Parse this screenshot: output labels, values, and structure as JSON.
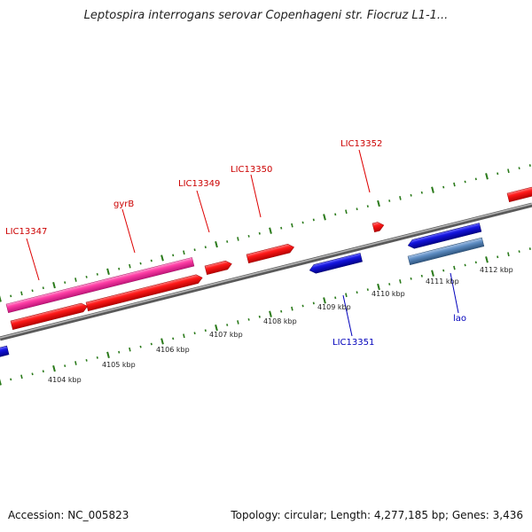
{
  "title": "Leptospira interrogans serovar Copenhageni str. Fiocruz L1-1...",
  "footer": {
    "accession": "Accession: NC_005823",
    "summary": "Topology: circular; Length: 4,277,185 bp; Genes: 3,436"
  },
  "colors": {
    "forward_gene": "#e60000",
    "reverse_gene": "#1010d0",
    "highlight_gene": "#ff3fa6",
    "steel_gene": "#4f7fb5",
    "axis": "#888888",
    "ticks": "#2a7a1a",
    "label_forward": "#cc0000",
    "label_reverse": "#0000bb"
  },
  "scale": {
    "unit": "kbp",
    "ticks_kbp": [
      4104,
      4105,
      4106,
      4107,
      4108,
      4109,
      4110,
      4111,
      4112
    ],
    "tick_labels": [
      "4104 kbp",
      "4105 kbp",
      "4106 kbp",
      "4107 kbp",
      "4108 kbp",
      "4109 kbp",
      "4110 kbp",
      "4111 kbp",
      "4112 kbp"
    ]
  },
  "gene_labels": [
    {
      "name": "LIC13347",
      "strand": "forward"
    },
    {
      "name": "gyrB",
      "strand": "forward"
    },
    {
      "name": "LIC13349",
      "strand": "forward"
    },
    {
      "name": "LIC13350",
      "strand": "forward"
    },
    {
      "name": "LIC13352",
      "strand": "forward"
    },
    {
      "name": "LIC13351",
      "strand": "reverse"
    },
    {
      "name": "lao",
      "strand": "reverse"
    }
  ]
}
